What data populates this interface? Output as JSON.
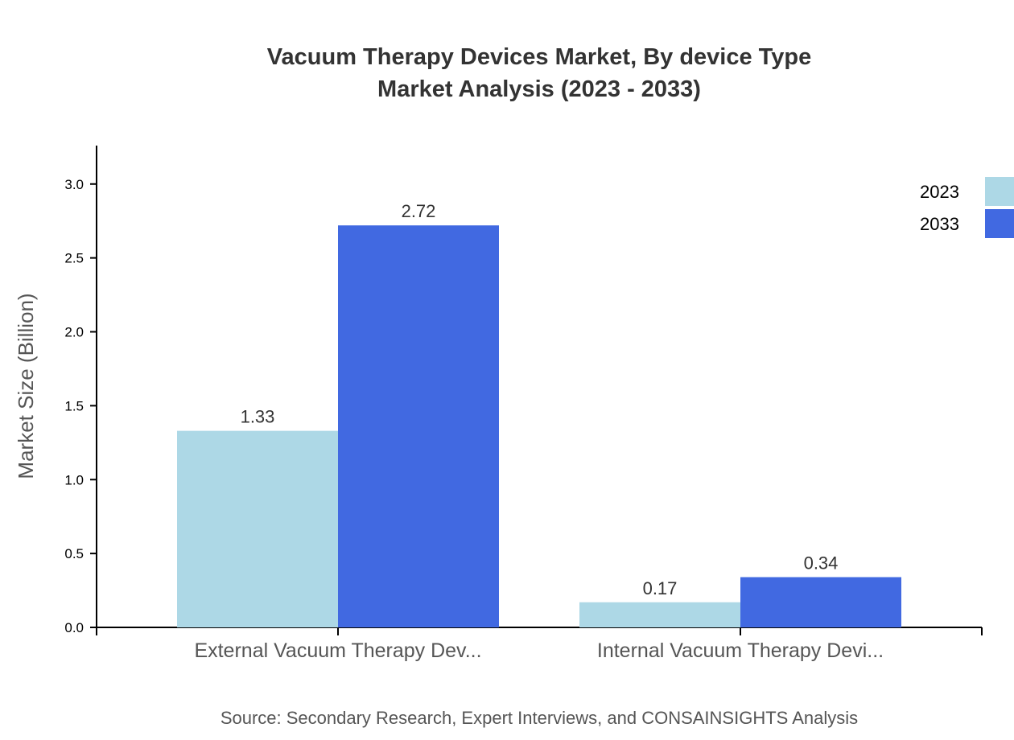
{
  "chart_data": {
    "type": "bar",
    "title": "Vacuum Therapy Devices Market, By device Type",
    "subtitle": "Market Analysis (2023 - 2033)",
    "ylabel": "Market Size (Billion)",
    "xlabel": "",
    "categories": [
      "External Vacuum Therapy Dev...",
      "Internal Vacuum Therapy Devi..."
    ],
    "series": [
      {
        "name": "2023",
        "color": "#add8e6",
        "values": [
          1.33,
          0.17
        ]
      },
      {
        "name": "2033",
        "color": "#4169e1",
        "values": [
          2.72,
          0.34
        ]
      }
    ],
    "ylim": [
      0,
      3.26
    ],
    "yticks": [
      "0.0",
      "0.5",
      "1.0",
      "1.5",
      "2.0",
      "2.5",
      "3.0"
    ],
    "grid": false,
    "legend": "top-right"
  },
  "source": "Source: Secondary Research, Expert Interviews, and CONSAINSIGHTS Analysis"
}
